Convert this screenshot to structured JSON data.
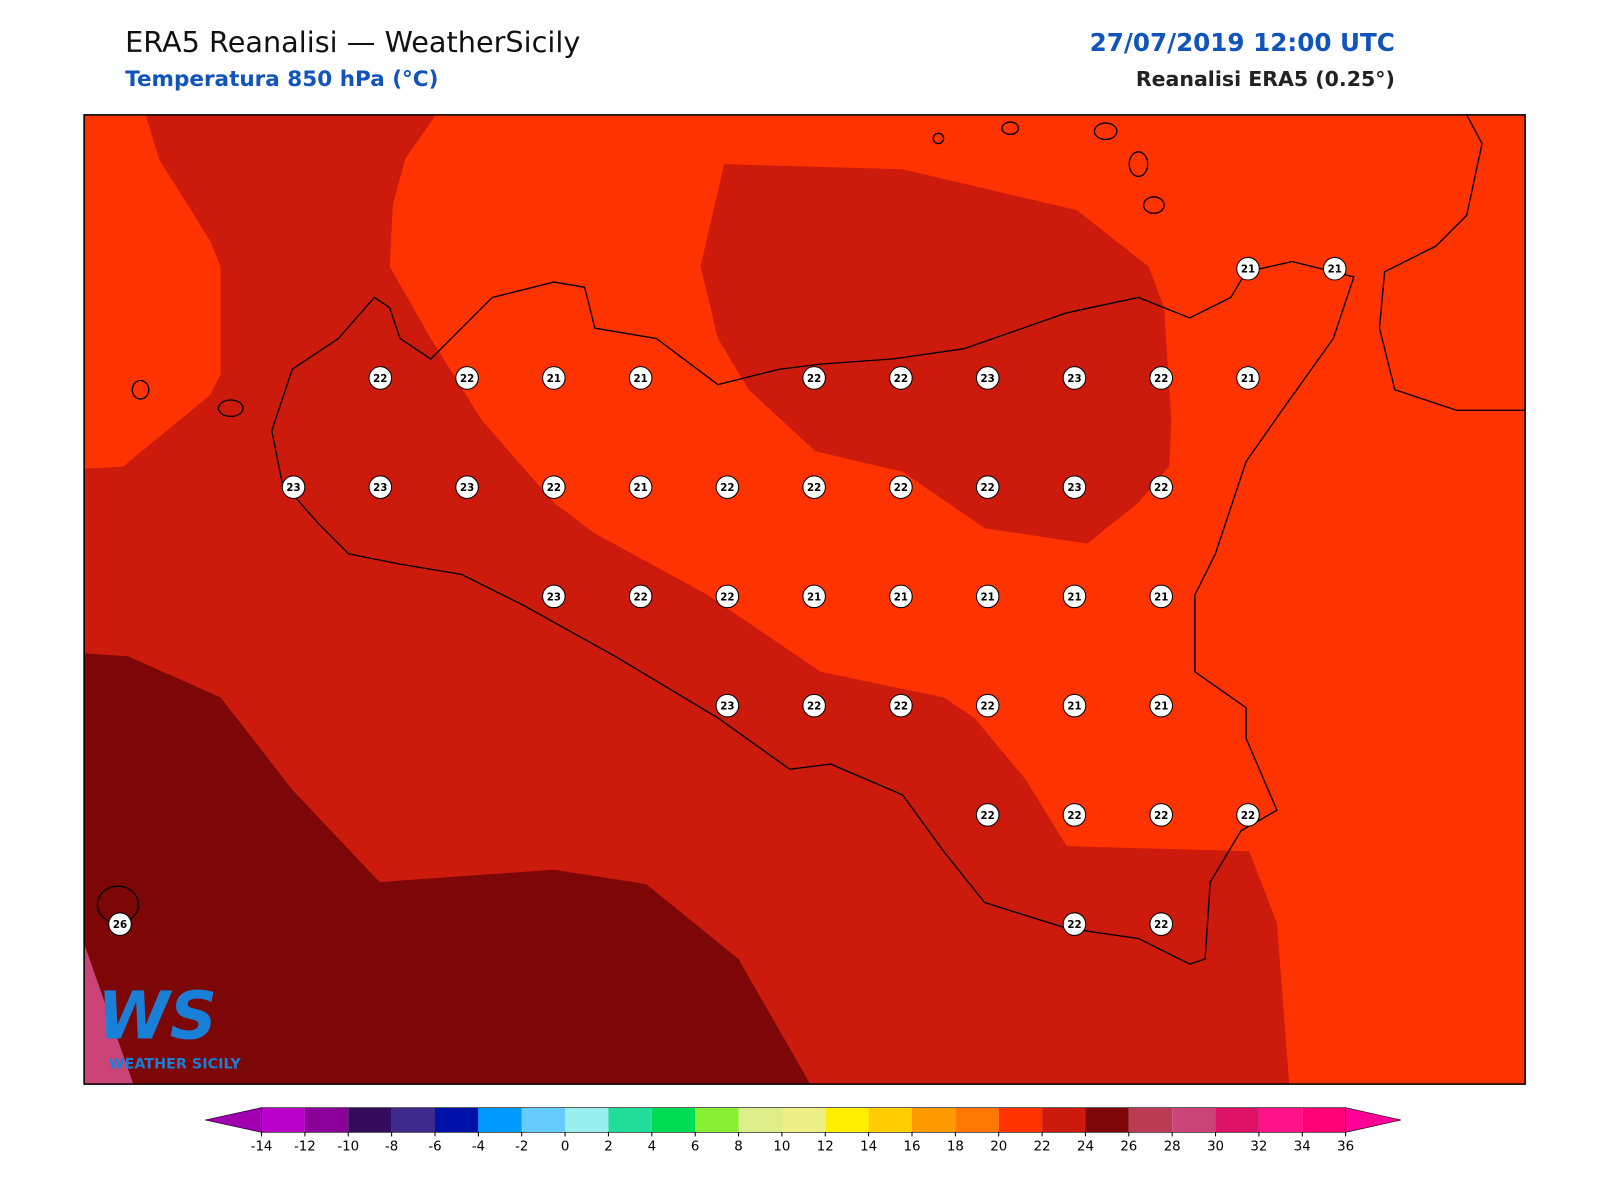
{
  "header": {
    "title": "ERA5 Reanalisi — WeatherSicily",
    "subtitle": "Temperatura 850 hPa (°C)",
    "datetime": "27/07/2019 12:00 UTC",
    "source": "Reanalisi ERA5 (0.25°)"
  },
  "stations": [
    21,
    21,
    22,
    22,
    21,
    21,
    22,
    22,
    23,
    23,
    22,
    21,
    23,
    23,
    23,
    22,
    21,
    22,
    22,
    22,
    22,
    23,
    22,
    23,
    22,
    22,
    21,
    21,
    21,
    21,
    21,
    23,
    22,
    22,
    22,
    21,
    21,
    22,
    22,
    22,
    22,
    26,
    22,
    22
  ],
  "colorbar": {
    "ticks": [
      -14,
      -12,
      -10,
      -8,
      -6,
      -4,
      -2,
      0,
      2,
      4,
      6,
      8,
      10,
      12,
      14,
      16,
      18,
      20,
      22,
      24,
      26,
      28,
      30,
      32,
      34,
      36
    ],
    "colors": [
      "#bb00cc",
      "#8a0099",
      "#330d5c",
      "#3d2a8c",
      "#0011aa",
      "#0099ff",
      "#66ccff",
      "#99eeee",
      "#22dd99",
      "#00dd55",
      "#88ee33",
      "#ddee88",
      "#eeee88",
      "#ffee00",
      "#ffcc00",
      "#ff9900",
      "#ff7700",
      "#ff3300",
      "#cc1a0d",
      "#7d0606",
      "#bb3b55",
      "#cc4477",
      "#dd1166",
      "#ff1188",
      "#ff0077"
    ],
    "under": "#a000b0",
    "over": "#ff0099"
  },
  "logo": {
    "mark": "WS",
    "name": "WEATHER SICILY"
  }
}
